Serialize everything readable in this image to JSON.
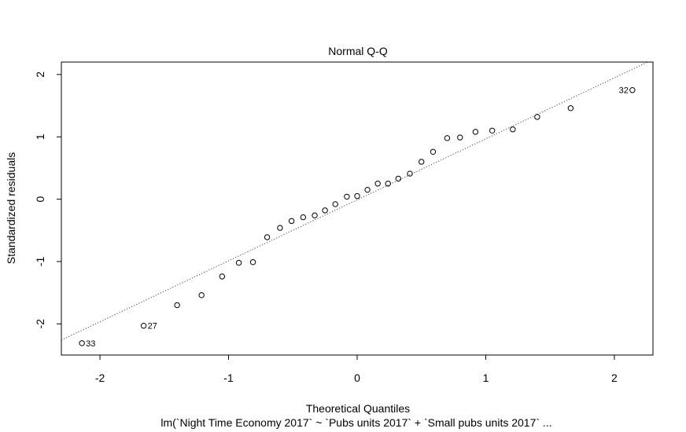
{
  "chart_data": {
    "type": "scatter",
    "title": "Normal Q-Q",
    "xlabel": "Theoretical Quantiles",
    "ylabel": "Standardized residuals",
    "subtitle": "lm(`Night Time Economy 2017` ~ `Pubs units 2017` + `Small pubs units 2017`  ...",
    "xlim": [
      -2.3,
      2.3
    ],
    "ylim": [
      -2.5,
      2.2
    ],
    "x_ticks": [
      -2,
      -1,
      0,
      1,
      2
    ],
    "y_ticks": [
      -2,
      -1,
      0,
      1,
      2
    ],
    "grid": false,
    "points": [
      {
        "x": -2.14,
        "y": -2.31
      },
      {
        "x": -1.66,
        "y": -2.03
      },
      {
        "x": -1.4,
        "y": -1.7
      },
      {
        "x": -1.21,
        "y": -1.54
      },
      {
        "x": -1.05,
        "y": -1.24
      },
      {
        "x": -0.92,
        "y": -1.02
      },
      {
        "x": -0.81,
        "y": -1.01
      },
      {
        "x": -0.7,
        "y": -0.61
      },
      {
        "x": -0.6,
        "y": -0.46
      },
      {
        "x": -0.51,
        "y": -0.35
      },
      {
        "x": -0.42,
        "y": -0.29
      },
      {
        "x": -0.33,
        "y": -0.26
      },
      {
        "x": -0.25,
        "y": -0.18
      },
      {
        "x": -0.17,
        "y": -0.08
      },
      {
        "x": -0.08,
        "y": 0.04
      },
      {
        "x": 0.0,
        "y": 0.05
      },
      {
        "x": 0.08,
        "y": 0.15
      },
      {
        "x": 0.16,
        "y": 0.25
      },
      {
        "x": 0.24,
        "y": 0.25
      },
      {
        "x": 0.32,
        "y": 0.33
      },
      {
        "x": 0.41,
        "y": 0.41
      },
      {
        "x": 0.5,
        "y": 0.6
      },
      {
        "x": 0.59,
        "y": 0.76
      },
      {
        "x": 0.7,
        "y": 0.98
      },
      {
        "x": 0.8,
        "y": 0.99
      },
      {
        "x": 0.92,
        "y": 1.08
      },
      {
        "x": 1.05,
        "y": 1.1
      },
      {
        "x": 1.21,
        "y": 1.12
      },
      {
        "x": 1.4,
        "y": 1.32
      },
      {
        "x": 1.66,
        "y": 1.46
      },
      {
        "x": 2.14,
        "y": 1.75
      }
    ],
    "point_labels": [
      {
        "x": -2.14,
        "y": -2.31,
        "text": "33",
        "side": "right"
      },
      {
        "x": -1.66,
        "y": -2.03,
        "text": "27",
        "side": "right"
      },
      {
        "x": 2.14,
        "y": 1.75,
        "text": "32",
        "side": "left"
      }
    ],
    "reference_line": {
      "style": "dotted",
      "x1": -2.3,
      "y1": -2.26,
      "x2": 2.3,
      "y2": 2.24
    }
  }
}
